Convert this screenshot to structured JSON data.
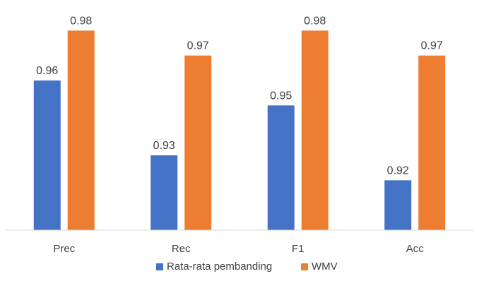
{
  "chart_data": {
    "type": "bar",
    "title": "",
    "xlabel": "",
    "ylabel": "",
    "categories": [
      "Prec",
      "Rec",
      "F1",
      "Acc"
    ],
    "series": [
      {
        "name": "Rata-rata pembanding",
        "color": "#4472C4",
        "values": [
          0.96,
          0.93,
          0.95,
          0.92
        ]
      },
      {
        "name": "WMV",
        "color": "#ED7D31",
        "values": [
          0.98,
          0.97,
          0.98,
          0.97
        ]
      }
    ],
    "ylim": [
      0.9,
      0.99
    ],
    "grid": false,
    "legend": "bottom",
    "axis_color": "#D9D9D9"
  }
}
